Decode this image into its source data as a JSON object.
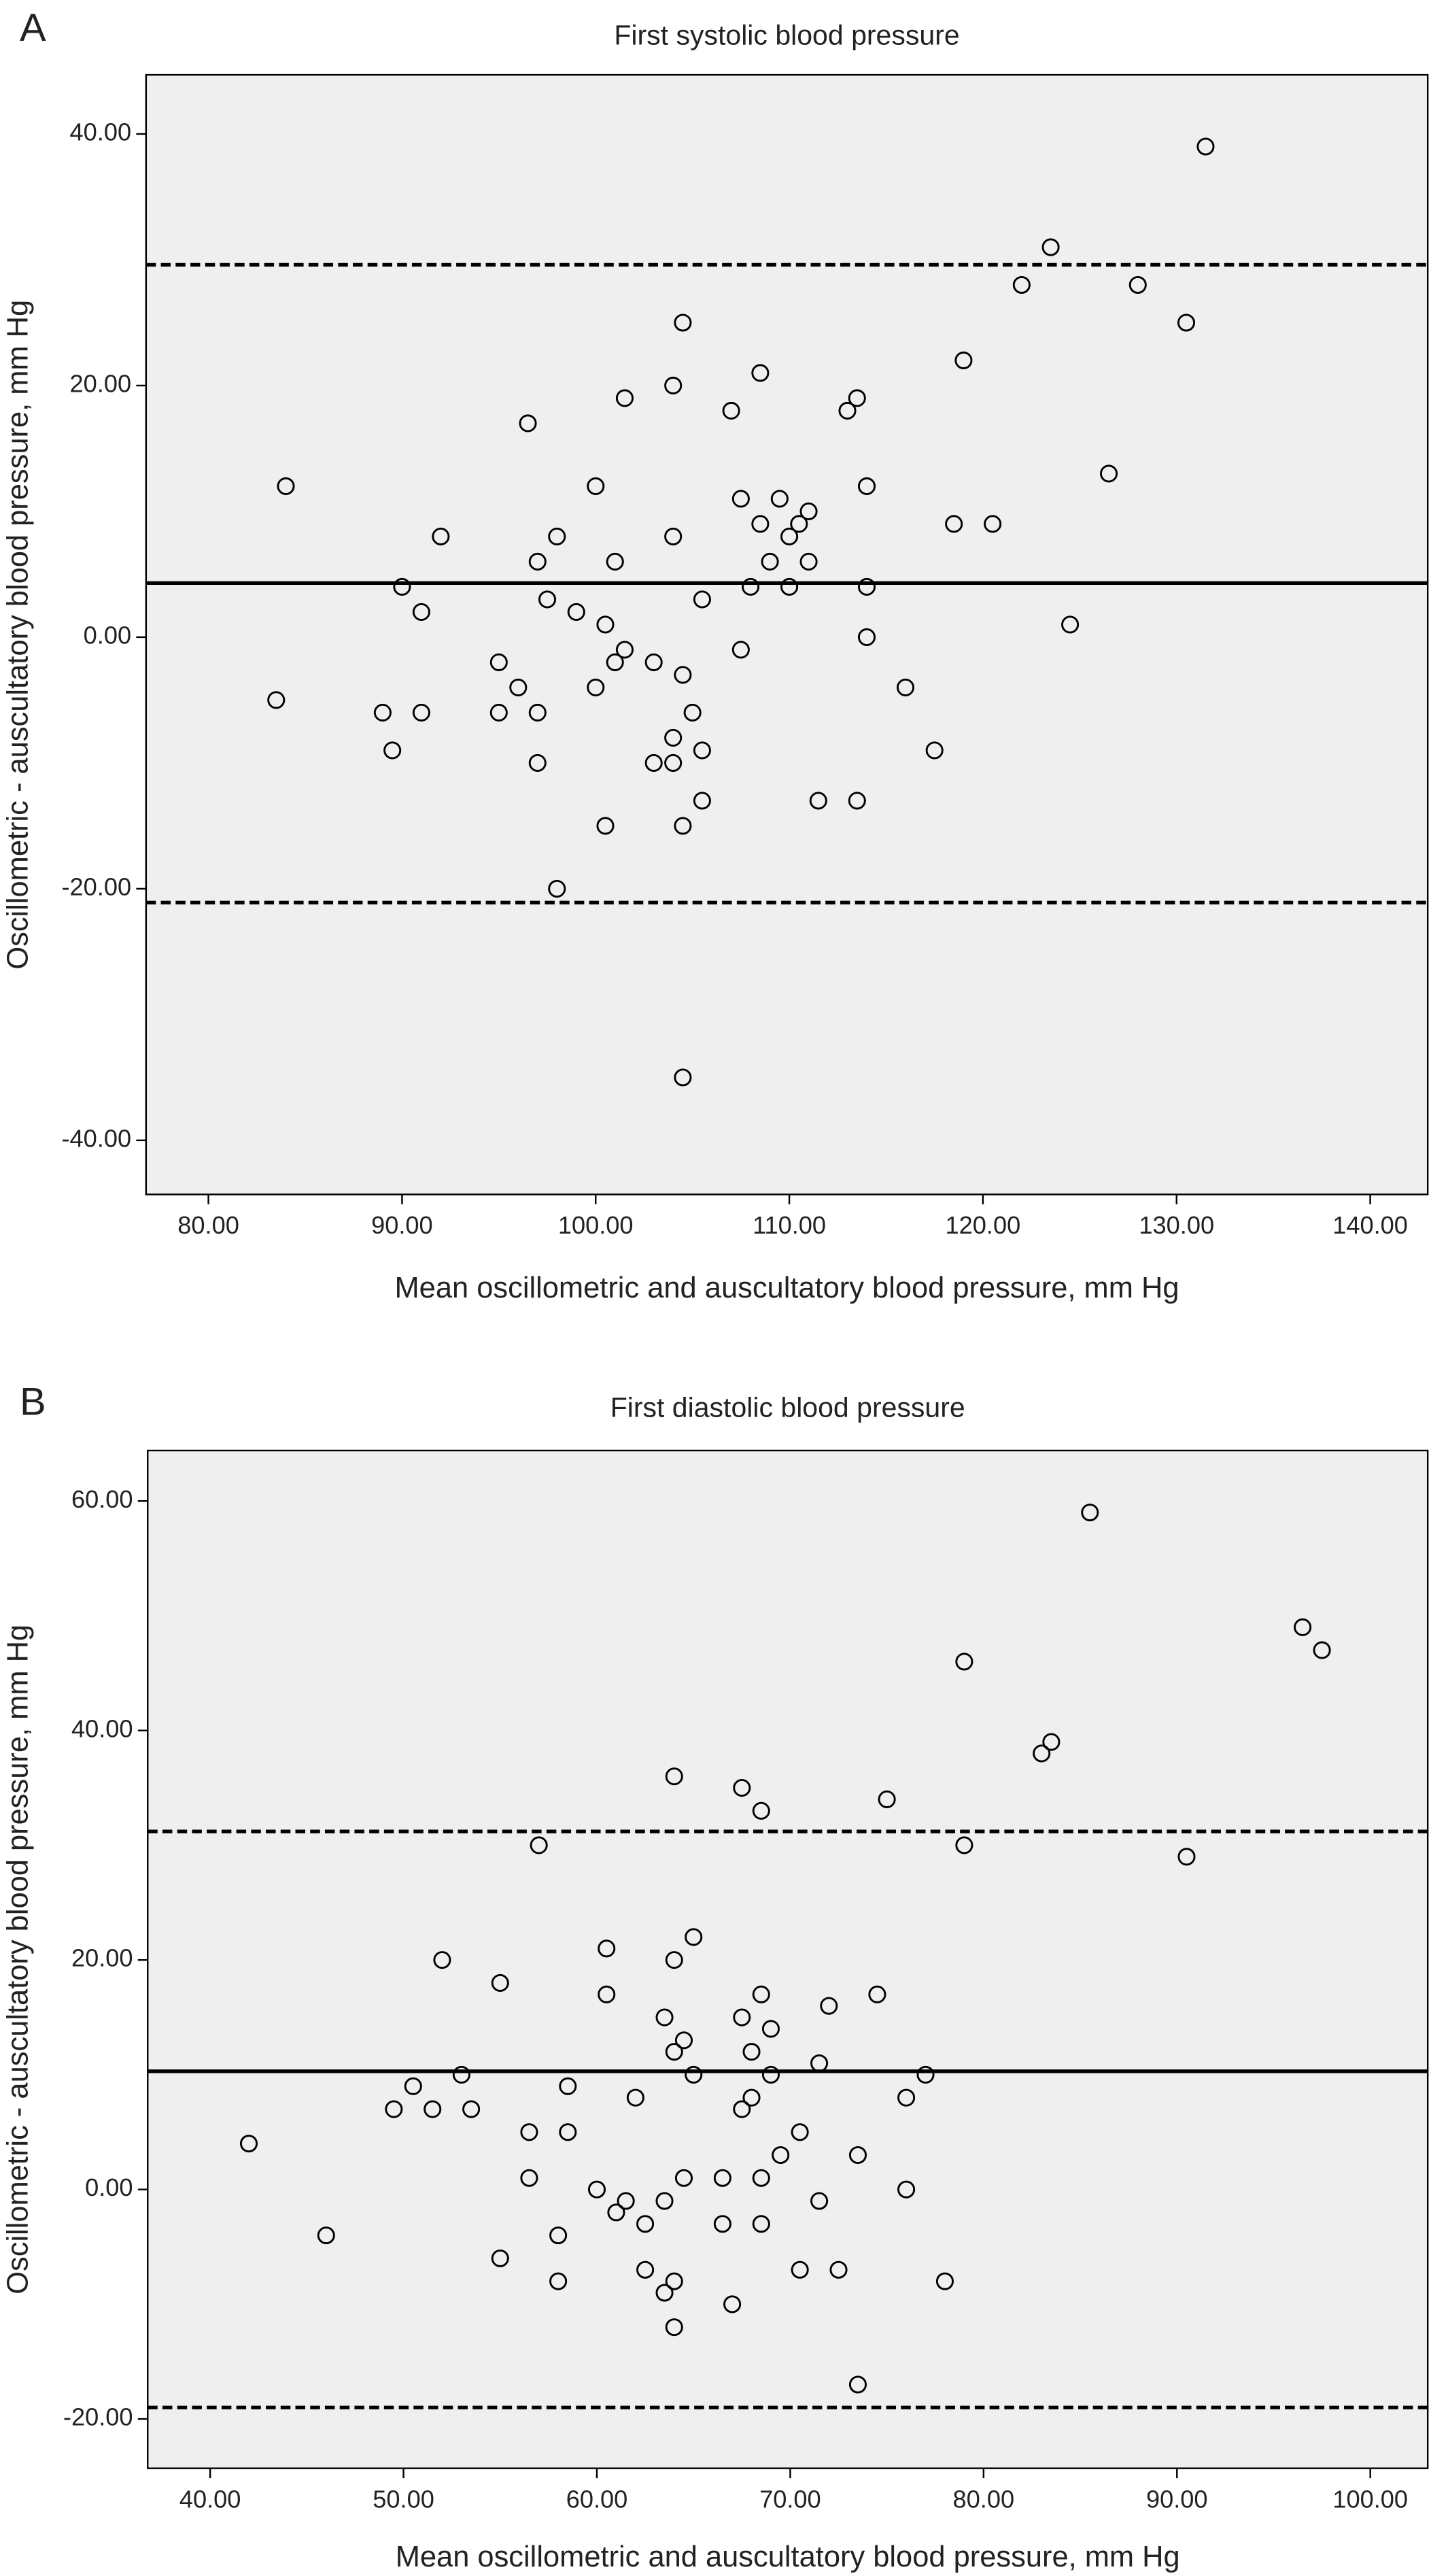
{
  "chart_data": [
    {
      "type": "scatter",
      "panel_label": "A",
      "title": "First systolic blood pressure",
      "x_label": "Mean oscillometric and auscultatory blood pressure, mm Hg",
      "y_label": "Oscillometric - auscultatory blood pressure, mm Hg",
      "xlim": [
        76.78,
        142.97
      ],
      "ylim": [
        -44.3,
        44.7
      ],
      "xticks": [
        {
          "value": 80,
          "label": "80.00"
        },
        {
          "value": 90,
          "label": "90.00"
        },
        {
          "value": 100,
          "label": "100.00"
        },
        {
          "value": 110,
          "label": "110.00"
        },
        {
          "value": 120,
          "label": "120.00"
        },
        {
          "value": 130,
          "label": "130.00"
        },
        {
          "value": 140,
          "label": "140.00"
        }
      ],
      "yticks": [
        {
          "value": -40,
          "label": "-40.00"
        },
        {
          "value": -20,
          "label": "-20.00"
        },
        {
          "value": 0,
          "label": "0.00"
        },
        {
          "value": 20,
          "label": "20.00"
        },
        {
          "value": 40,
          "label": "40.00"
        }
      ],
      "reference_lines": [
        {
          "value": 29.6,
          "style": "dashed"
        },
        {
          "value": 4.3,
          "style": "solid"
        },
        {
          "value": -21.1,
          "style": "dashed"
        }
      ],
      "background": "#efefef",
      "color": "#000000",
      "x": [
        84,
        83.5,
        89,
        89.5,
        90,
        91,
        91,
        92,
        95,
        95,
        96,
        96.5,
        97,
        97,
        97,
        97.5,
        98,
        98,
        99,
        100,
        100,
        100.5,
        100.5,
        101,
        101,
        101.5,
        101.5,
        103,
        103,
        104,
        104,
        104,
        104,
        104.5,
        104.5,
        104.5,
        104.5,
        105,
        105.5,
        105.5,
        105.5,
        107,
        107.5,
        107.5,
        108,
        108.5,
        108.5,
        109,
        109.5,
        110,
        110,
        110.5,
        111,
        111,
        111.5,
        113,
        113.5,
        113.5,
        114,
        114,
        114,
        116,
        117.5,
        118.5,
        119,
        120.5,
        122,
        123.5,
        124.5,
        126.5,
        128,
        130.5,
        131.5
      ],
      "y": [
        12,
        -5,
        -6,
        -9,
        4,
        2,
        -6,
        8,
        -2,
        -6,
        -4,
        17,
        6,
        -6,
        -10,
        3,
        8,
        -20,
        2,
        12,
        -4,
        1,
        -15,
        6,
        -2,
        19,
        -1,
        -2,
        -10,
        20,
        8,
        -8,
        -10,
        25,
        -3,
        -15,
        -35,
        -6,
        3,
        -9,
        -13,
        18,
        11,
        -1,
        4,
        21,
        9,
        6,
        11,
        8,
        4,
        9,
        10,
        6,
        -13,
        18,
        19,
        -13,
        12,
        4,
        0,
        -4,
        -9,
        9,
        22,
        9,
        28,
        31,
        1,
        13,
        28,
        25,
        39
      ]
    },
    {
      "type": "scatter",
      "panel_label": "B",
      "title": "First diastolic blood pressure",
      "x_label": "Mean oscillometric and auscultatory blood pressure, mm Hg",
      "y_label": "Oscillometric - auscultatory blood pressure, mm Hg",
      "xlim": [
        36.77,
        102.97
      ],
      "ylim": [
        -24.3,
        64.4
      ],
      "xticks": [
        {
          "value": 40,
          "label": "40.00"
        },
        {
          "value": 50,
          "label": "50.00"
        },
        {
          "value": 60,
          "label": "60.00"
        },
        {
          "value": 70,
          "label": "70.00"
        },
        {
          "value": 80,
          "label": "80.00"
        },
        {
          "value": 90,
          "label": "90.00"
        },
        {
          "value": 100,
          "label": "100.00"
        }
      ],
      "yticks": [
        {
          "value": -20,
          "label": "-20.00"
        },
        {
          "value": 0,
          "label": "0.00"
        },
        {
          "value": 20,
          "label": "20.00"
        },
        {
          "value": 40,
          "label": "40.00"
        },
        {
          "value": 60,
          "label": "60.00"
        }
      ],
      "reference_lines": [
        {
          "value": 31.2,
          "style": "dashed"
        },
        {
          "value": 10.3,
          "style": "solid"
        },
        {
          "value": -19.0,
          "style": "dashed"
        }
      ],
      "background": "#efefef",
      "color": "#000000",
      "x": [
        42,
        46,
        49.5,
        50.5,
        51.5,
        52,
        53,
        53.5,
        55,
        55,
        56.5,
        56.5,
        57,
        58,
        58,
        58.5,
        58.5,
        60,
        60.5,
        60.5,
        61,
        61.5,
        62,
        62.5,
        62.5,
        63.5,
        63.5,
        63.5,
        64,
        64,
        64,
        64,
        64,
        64.5,
        64.5,
        65,
        65,
        66.5,
        66.5,
        67,
        67.5,
        67.5,
        67.5,
        68,
        68,
        68.5,
        68.5,
        68.5,
        68.5,
        69,
        69,
        69.5,
        70.5,
        70.5,
        71.5,
        71.5,
        72,
        72.5,
        73.5,
        73.5,
        74.5,
        75,
        76,
        76,
        77,
        78,
        79,
        79,
        83,
        83.5,
        85.5,
        90.5,
        96.5,
        97.5
      ],
      "y": [
        4,
        -4,
        7,
        9,
        7,
        20,
        10,
        7,
        18,
        -6,
        5,
        1,
        30,
        -4,
        -8,
        9,
        5,
        0,
        21,
        17,
        -2,
        -1,
        8,
        -3,
        -7,
        15,
        -1,
        -9,
        36,
        20,
        12,
        -8,
        -12,
        13,
        1,
        22,
        10,
        1,
        -3,
        -10,
        35,
        15,
        7,
        12,
        8,
        33,
        17,
        1,
        -3,
        14,
        10,
        3,
        5,
        -7,
        11,
        -1,
        16,
        -7,
        3,
        -17,
        17,
        34,
        8,
        0,
        10,
        -8,
        46,
        30,
        38,
        39,
        59,
        29,
        49,
        47
      ]
    }
  ]
}
